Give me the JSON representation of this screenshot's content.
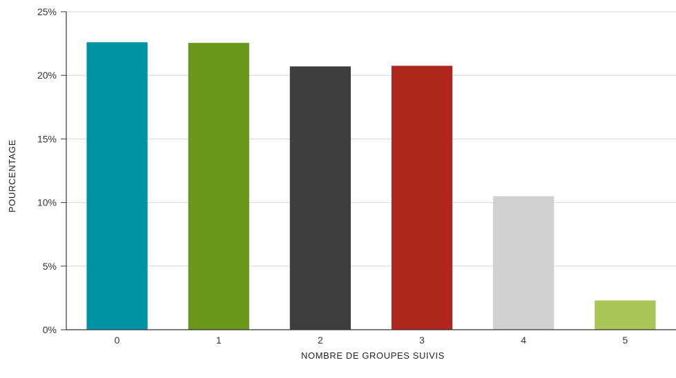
{
  "chart_data": {
    "type": "bar",
    "categories": [
      "0",
      "1",
      "2",
      "3",
      "4",
      "5"
    ],
    "values": [
      22.6,
      22.55,
      20.7,
      20.75,
      10.5,
      2.3
    ],
    "colors": [
      "#0093a6",
      "#6a961c",
      "#3d3d3f",
      "#b0281d",
      "#cfd0d2",
      "#a8c55a"
    ],
    "xlabel": "NOMBRE DE GROUPES SUIVIS",
    "ylabel": "POURCENTAGE",
    "ylim": [
      0,
      25
    ],
    "yticks": [
      0,
      5,
      10,
      15,
      20,
      25
    ],
    "ytick_labels": [
      "0%",
      "5%",
      "10%",
      "15%",
      "20%",
      "25%"
    ],
    "grid": true,
    "legend": "none"
  }
}
